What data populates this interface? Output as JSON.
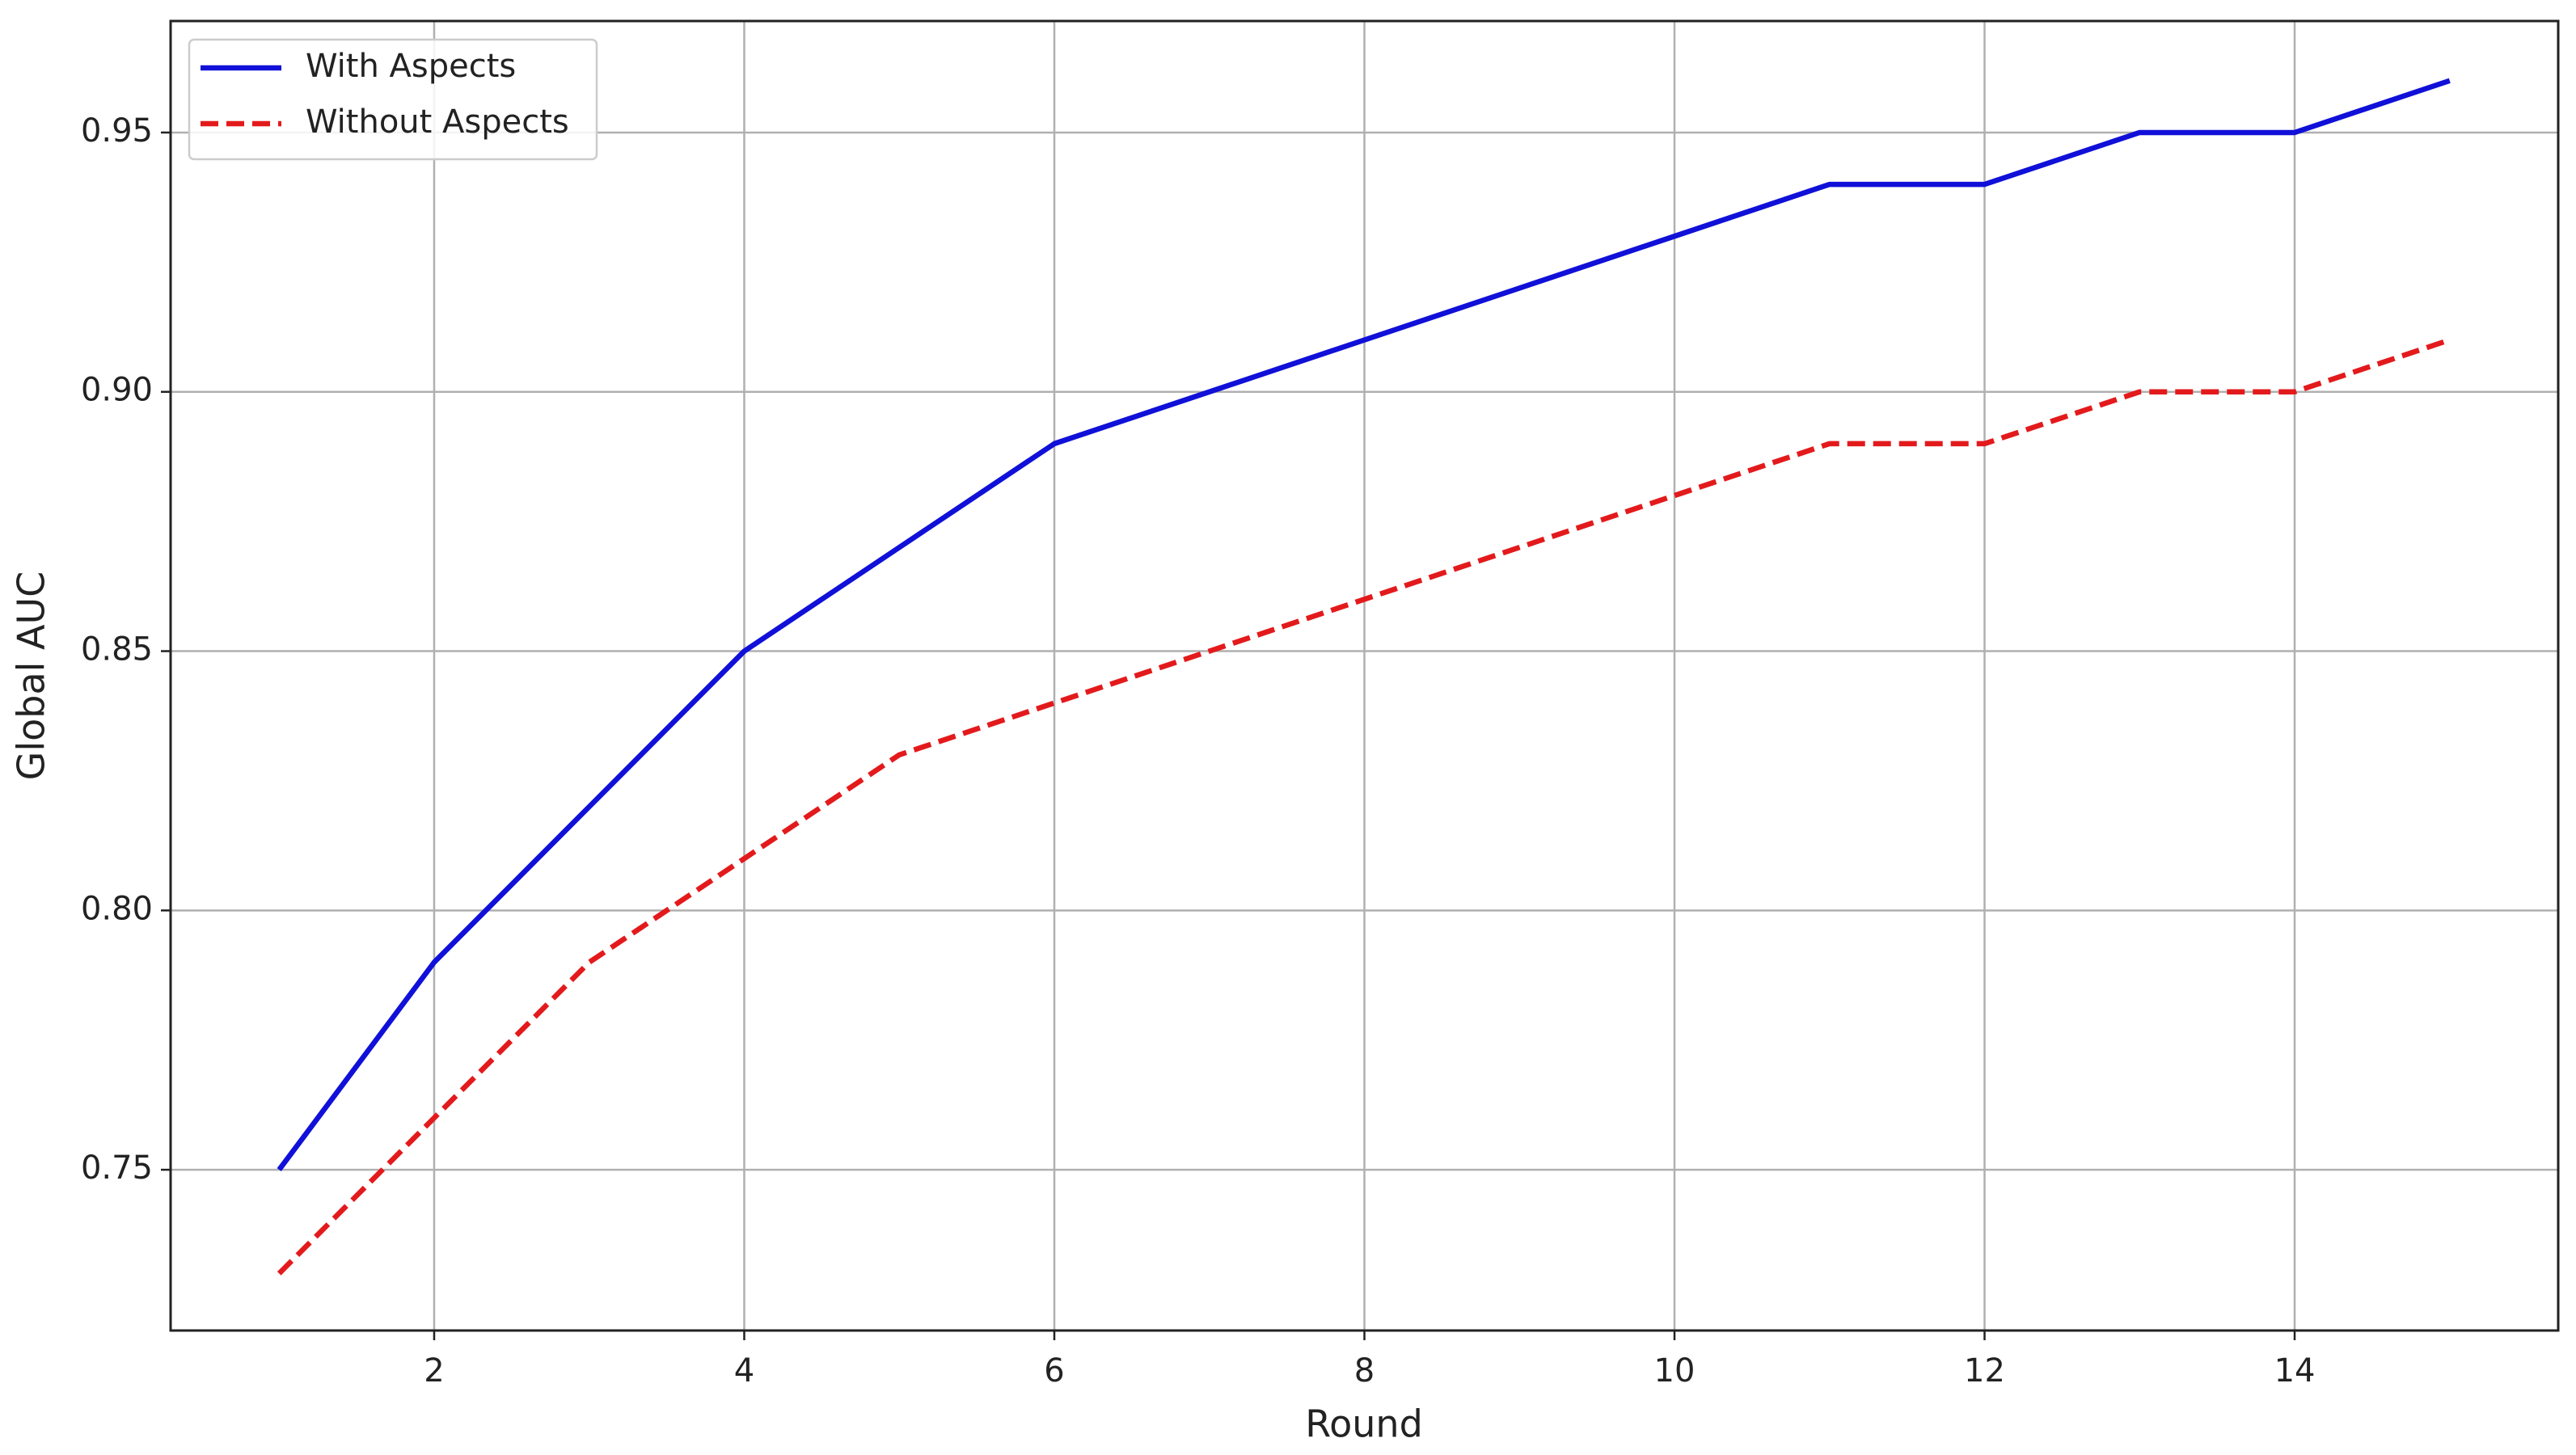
{
  "chart_data": {
    "type": "line",
    "x": [
      1,
      2,
      3,
      4,
      5,
      6,
      7,
      8,
      9,
      10,
      11,
      12,
      13,
      14,
      15
    ],
    "series": [
      {
        "name": "With Aspects",
        "color": "#1010d8",
        "dash": false,
        "values": [
          0.75,
          0.79,
          0.82,
          0.85,
          0.87,
          0.89,
          0.9,
          0.91,
          0.92,
          0.93,
          0.94,
          0.94,
          0.95,
          0.95,
          0.96
        ]
      },
      {
        "name": "Without Aspects",
        "color": "#e31a1c",
        "dash": true,
        "values": [
          0.73,
          0.76,
          0.79,
          0.81,
          0.83,
          0.84,
          0.85,
          0.86,
          0.87,
          0.88,
          0.89,
          0.89,
          0.9,
          0.9,
          0.91
        ]
      }
    ],
    "xlabel": "Round",
    "ylabel": "Global AUC",
    "xlim": [
      0.3,
      15.7
    ],
    "ylim": [
      0.719,
      0.9715
    ],
    "xticks": [
      2,
      4,
      6,
      8,
      10,
      12,
      14
    ],
    "yticks": [
      0.75,
      {
        "value": 0.8,
        "label": "0.80"
      },
      0.85,
      {
        "value": 0.9,
        "label": "0.90"
      },
      0.95
    ],
    "grid": true,
    "legend": "upper left"
  }
}
